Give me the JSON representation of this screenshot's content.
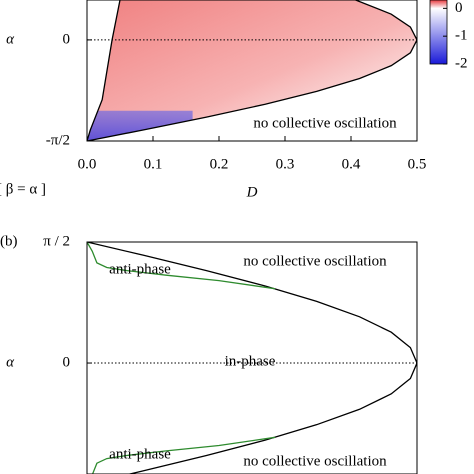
{
  "chart_data": [
    {
      "type": "line",
      "panel_label": "[ β = α ]",
      "xlabel": "D",
      "ylabel": "α",
      "xlim": [
        0,
        0.5
      ],
      "ylim": [
        -1.5708,
        0.62
      ],
      "xticks": [
        {
          "value": 0,
          "label": "0.0"
        },
        0.1,
        0.2,
        0.3,
        0.4,
        0.5
      ],
      "yticks": [
        {
          "value": -1.5708,
          "label": "-π/2"
        },
        0
      ],
      "fill_between": true,
      "series": [
        {
          "color": "#000000",
          "x": [
            0.05,
            0.038,
            0.023,
            0.005,
            0
          ],
          "y": [
            0.62,
            0,
            -0.93,
            -1.4,
            -1.5708
          ]
        },
        {
          "color": "#000000",
          "x": [
            0.407,
            0.461,
            0.49,
            0.5,
            0.49,
            0.461,
            0.413,
            0.348,
            0.27,
            0.181,
            0.085,
            0
          ],
          "y": [
            0.62,
            0.4,
            0.2,
            0,
            -0.2,
            -0.4,
            -0.6,
            -0.8,
            -1.0,
            -1.2,
            -1.4,
            -1.5708
          ]
        }
      ],
      "annotations": [
        "no collective oscillation"
      ],
      "colorbar": {
        "clim": [
          -2,
          0.3
        ],
        "ticks": [
          0,
          -1,
          -2
        ],
        "colors": [
          "#e8383d",
          "#ffffff",
          "#1a1ad8"
        ]
      }
    },
    {
      "type": "line",
      "panel_label": "(b)",
      "ylabel": "α",
      "xlim": [
        0,
        0.5
      ],
      "ylim": [
        -1.44,
        1.5708
      ],
      "yticks": [
        {
          "value": 1.5708,
          "label": "π / 2"
        },
        0
      ],
      "fill_between": false,
      "series": [
        {
          "color": "#000000",
          "x": [
            0,
            0.085,
            0.181,
            0.27,
            0.348,
            0.413,
            0.461,
            0.49,
            0.5,
            0.49,
            0.461,
            0.413,
            0.348,
            0.27,
            0.181,
            0.085,
            0
          ],
          "y": [
            1.5708,
            1.4,
            1.2,
            1.0,
            0.8,
            0.6,
            0.4,
            0.2,
            0,
            -0.2,
            -0.4,
            -0.6,
            -0.8,
            -1.0,
            -1.2,
            -1.4,
            -1.5708
          ]
        },
        {
          "color": "#2e8b2e",
          "x": [
            0,
            0.008,
            0.015,
            0.03,
            0.06,
            0.12,
            0.2,
            0.285
          ],
          "y": [
            1.5708,
            1.45,
            1.3,
            1.24,
            1.2,
            1.14,
            1.07,
            0.964
          ]
        },
        {
          "color": "#2e8b2e",
          "x": [
            0,
            0.008,
            0.015,
            0.03,
            0.06,
            0.12,
            0.2,
            0.285
          ],
          "y": [
            -1.5708,
            -1.45,
            -1.3,
            -1.24,
            -1.2,
            -1.14,
            -1.07,
            -0.964
          ]
        }
      ],
      "annotations": [
        "anti-phase",
        "no collective oscillation",
        "in-phase",
        "anti-phase",
        "no collective oscillation"
      ]
    }
  ]
}
